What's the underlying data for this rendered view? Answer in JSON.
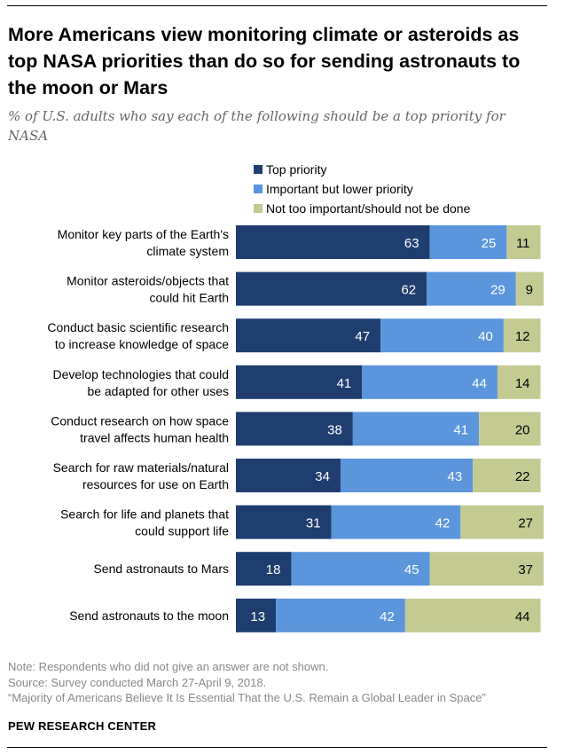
{
  "title": "More Americans view monitoring climate or asteroids as top NASA priorities than do so for sending astronauts to the moon or Mars",
  "subtitle": "% of U.S. adults who say each of the following should be a top priority for NASA",
  "legend": [
    {
      "label": "Top priority",
      "color": "#1f3e6f"
    },
    {
      "label": "Important but lower priority",
      "color": "#5b95dc"
    },
    {
      "label": "Not too important/should not be done",
      "color": "#c3cb93"
    }
  ],
  "chart_data": {
    "type": "bar",
    "orientation": "horizontal",
    "stacked": true,
    "categories": [
      [
        "Monitor key parts of the Earth's",
        "climate system"
      ],
      [
        "Monitor asteroids/objects that",
        "could hit Earth"
      ],
      [
        "Conduct basic scientific research",
        "to increase knowledge of space"
      ],
      [
        "Develop technologies that could",
        "be adapted for other uses"
      ],
      [
        "Conduct research on how space",
        "travel affects human health"
      ],
      [
        "Search for raw materials/natural",
        "resources for use on Earth"
      ],
      [
        "Search for life and planets that",
        "could support life"
      ],
      [
        "Send astronauts to Mars"
      ],
      [
        "Send astronauts to the moon"
      ]
    ],
    "series": [
      {
        "name": "Top priority",
        "color": "#1f3e6f",
        "label_color": "#ffffff",
        "values": [
          63,
          62,
          47,
          41,
          38,
          34,
          31,
          18,
          13
        ]
      },
      {
        "name": "Important but lower priority",
        "color": "#5b95dc",
        "label_color": "#ffffff",
        "values": [
          25,
          29,
          40,
          44,
          41,
          43,
          42,
          45,
          42
        ]
      },
      {
        "name": "Not too important/should not be done",
        "color": "#c3cb93",
        "label_color": "#000000",
        "values": [
          11,
          9,
          12,
          14,
          20,
          22,
          27,
          37,
          44
        ]
      }
    ],
    "xlim": [
      0,
      100
    ],
    "grid": false,
    "legend_position": "top"
  },
  "footer": {
    "note": "Note: Respondents who did not give an answer are not shown.",
    "source": "Source: Survey conducted March 27-April 9, 2018.",
    "report": "“Majority of Americans Believe It Is Essential That the U.S. Remain a Global Leader in Space”"
  },
  "brand": "PEW RESEARCH CENTER"
}
